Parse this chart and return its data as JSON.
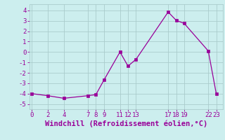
{
  "x": [
    0,
    2,
    4,
    7,
    8,
    9,
    11,
    12,
    13,
    17,
    18,
    19,
    22,
    23
  ],
  "y": [
    -4.0,
    -4.2,
    -4.45,
    -4.2,
    -4.1,
    -2.7,
    0.0,
    -1.35,
    -0.7,
    3.85,
    3.05,
    2.75,
    0.1,
    -4.05
  ],
  "xticks": [
    0,
    2,
    4,
    7,
    8,
    9,
    11,
    12,
    13,
    17,
    18,
    19,
    22,
    23
  ],
  "yticks": [
    -5,
    -4,
    -3,
    -2,
    -1,
    0,
    1,
    2,
    3,
    4
  ],
  "xlim": [
    -0.3,
    23.8
  ],
  "ylim": [
    -5.5,
    4.6
  ],
  "xlabel": "Windchill (Refroidissement éolien,°C)",
  "line_color": "#990099",
  "marker_color": "#990099",
  "bg_color": "#cceeee",
  "grid_color": "#aacccc",
  "xlabel_fontsize": 7.5,
  "tick_fontsize": 6.5
}
